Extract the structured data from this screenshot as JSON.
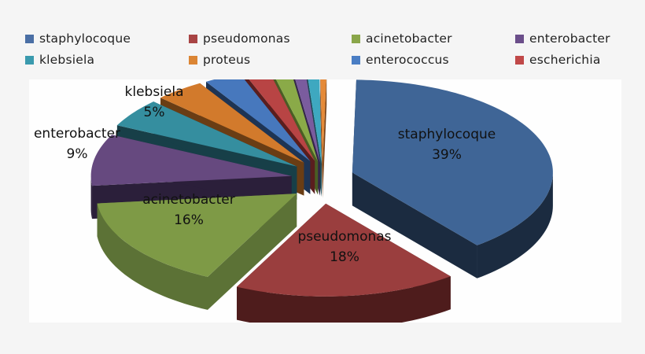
{
  "chart_data": {
    "type": "pie",
    "style": "3d-exploded",
    "title": "",
    "legend_position": "top",
    "legend": [
      {
        "label": "staphylocoque",
        "color": "#4A6FA5"
      },
      {
        "label": "pseudomonas",
        "color": "#A84444"
      },
      {
        "label": "acinetobacter",
        "color": "#8AA64A"
      },
      {
        "label": "enterobacter",
        "color": "#6B4E8A"
      },
      {
        "label": "klebsiela",
        "color": "#3A9AAE"
      },
      {
        "label": "proteus",
        "color": "#DB8534"
      },
      {
        "label": "enterococcus",
        "color": "#4A7EC4"
      },
      {
        "label": "escherichia",
        "color": "#C04848"
      }
    ],
    "slices": [
      {
        "label": "staphylocoque",
        "value": 39,
        "display": "39%",
        "color": "#3F6596",
        "side": "#1B2B40"
      },
      {
        "label": "pseudomonas",
        "value": 18,
        "display": "18%",
        "color": "#9A3E3E",
        "side": "#4E1C1C"
      },
      {
        "label": "acinetobacter",
        "value": 16,
        "display": "16%",
        "color": "#7E9A46",
        "side": "#5C7236"
      },
      {
        "label": "enterobacter",
        "value": 9,
        "display": "9%",
        "color": "#66497F",
        "side": "#2B1F3A"
      },
      {
        "label": "klebsiela",
        "value": 5,
        "display": "5%",
        "color": "#358E9F",
        "side": "#173F48"
      },
      {
        "label": "proteus",
        "value": 4,
        "display": "",
        "color": "#D27A2C",
        "side": "#6A3D14"
      },
      {
        "label": "enterococcus",
        "value": 3,
        "display": "",
        "color": "#4778BD",
        "side": "#1E3454"
      },
      {
        "label": "escherichia",
        "value": 2,
        "display": "",
        "color": "#B84444",
        "side": "#5A1E1E"
      },
      {
        "label": "",
        "value": 1.5,
        "display": "",
        "color": "#8AAA48",
        "side": "#4A5E24"
      },
      {
        "label": "",
        "value": 1,
        "display": "",
        "color": "#7A5C9E",
        "side": "#34264A"
      },
      {
        "label": "",
        "value": 1,
        "display": "",
        "color": "#3EA8C0",
        "side": "#1B4A56"
      },
      {
        "label": "",
        "value": 0.5,
        "display": "",
        "color": "#E58A38",
        "side": "#7A4418"
      }
    ]
  },
  "labels": {
    "staphylocoque": {
      "name": "staphylocoque",
      "pct": "39%"
    },
    "pseudomonas": {
      "name": "pseudomonas",
      "pct": "18%"
    },
    "acinetobacter": {
      "name": "acinetobacter",
      "pct": "16%"
    },
    "enterobacter": {
      "name": "enterobacter",
      "pct": "9%"
    },
    "klebsiela": {
      "name": "klebsiela",
      "pct": "5%"
    }
  }
}
